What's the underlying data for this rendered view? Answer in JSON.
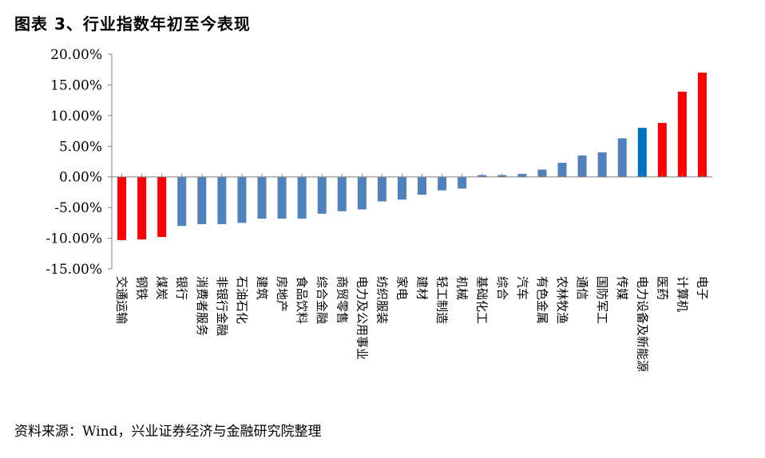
{
  "title": "图表 3、行业指数年初至今表现",
  "source": "资料来源：Wind，兴业证券经济与金融研究院整理",
  "colors": {
    "red": "#ff0000",
    "blue": "#4f81bd",
    "highlight_blue": "#0070c0",
    "axis": "#808080"
  },
  "chart_data": {
    "type": "bar",
    "title": "",
    "xlabel": "",
    "ylabel": "",
    "ylim": [
      -15,
      20
    ],
    "yticks": [
      20,
      15,
      10,
      5,
      0,
      -5,
      -10,
      -15
    ],
    "ytick_labels": [
      "20.00%",
      "15.00%",
      "10.00%",
      "5.00%",
      "0.00%",
      "-5.00%",
      "-10.00%",
      "-15.00%"
    ],
    "grid": false,
    "legend": "none",
    "categories": [
      "交通运输",
      "钢铁",
      "煤炭",
      "银行",
      "消费者服务",
      "非银行金融",
      "石油石化",
      "建筑",
      "房地产",
      "食品饮料",
      "综合金融",
      "商贸零售",
      "电力及公用事业",
      "纺织服装",
      "家电",
      "建材",
      "轻工制造",
      "机械",
      "基础化工",
      "综合",
      "汽车",
      "有色金属",
      "农林牧渔",
      "通信",
      "国防军工",
      "传媒",
      "电力设备及新能源",
      "医药",
      "计算机",
      "电子"
    ],
    "values": [
      -10.3,
      -10.2,
      -9.8,
      -8.0,
      -7.7,
      -7.7,
      -7.5,
      -6.8,
      -6.8,
      -6.8,
      -6.0,
      -5.6,
      -5.3,
      -4.0,
      -3.7,
      -2.9,
      -2.2,
      -1.9,
      0.3,
      0.3,
      0.5,
      1.2,
      2.3,
      3.5,
      4.0,
      6.3,
      8.0,
      8.8,
      13.9,
      17.0
    ],
    "bar_colors": [
      "#ff0000",
      "#ff0000",
      "#ff0000",
      "#4f81bd",
      "#4f81bd",
      "#4f81bd",
      "#4f81bd",
      "#4f81bd",
      "#4f81bd",
      "#4f81bd",
      "#4f81bd",
      "#4f81bd",
      "#4f81bd",
      "#4f81bd",
      "#4f81bd",
      "#4f81bd",
      "#4f81bd",
      "#4f81bd",
      "#4f81bd",
      "#4f81bd",
      "#4f81bd",
      "#4f81bd",
      "#4f81bd",
      "#4f81bd",
      "#4f81bd",
      "#4f81bd",
      "#0070c0",
      "#ff0000",
      "#ff0000",
      "#ff0000"
    ]
  }
}
